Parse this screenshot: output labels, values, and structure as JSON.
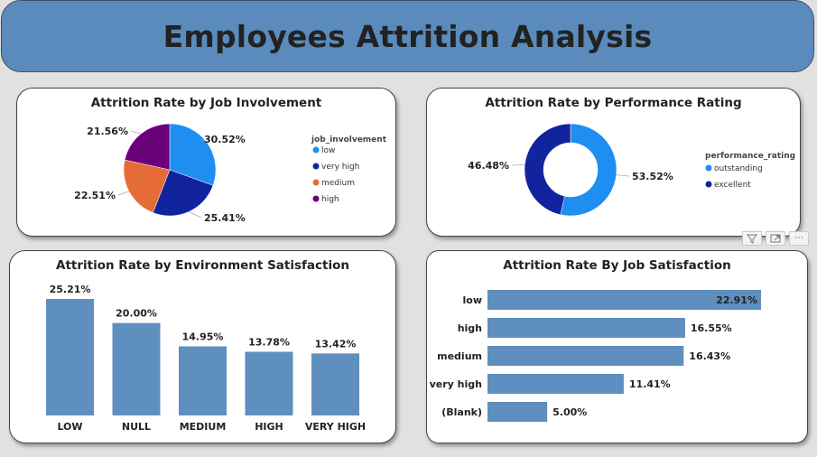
{
  "header": {
    "title": "Employees Attrition Analysis"
  },
  "visual_toolbar": {
    "icons": [
      "filter-icon",
      "focus-mode-icon",
      "more-options-icon"
    ],
    "more_glyph": "⋯"
  },
  "chart_data": [
    {
      "type": "pie",
      "title": "Attrition Rate by Job Involvement",
      "legend_title": "job_involvement",
      "legend_position": "right",
      "slices": [
        {
          "label": "low",
          "value": 30.52,
          "display": "30.52%",
          "color": "#1f8ef1"
        },
        {
          "label": "very high",
          "value": 25.41,
          "display": "25.41%",
          "color": "#12239e"
        },
        {
          "label": "medium",
          "value": 22.51,
          "display": "22.51%",
          "color": "#e66c37"
        },
        {
          "label": "high",
          "value": 21.56,
          "display": "21.56%",
          "color": "#6b007b"
        }
      ]
    },
    {
      "type": "pie",
      "donut": true,
      "title": "Attrition Rate by Performance Rating",
      "legend_title": "performance_rating",
      "legend_position": "right",
      "slices": [
        {
          "label": "outstanding",
          "value": 53.52,
          "display": "53.52%",
          "color": "#1f8ef1"
        },
        {
          "label": "excellent",
          "value": 46.48,
          "display": "46.48%",
          "color": "#12239e"
        }
      ]
    },
    {
      "type": "bar",
      "orientation": "vertical",
      "title": "Attrition Rate by Environment Satisfaction",
      "categories": [
        "LOW",
        "NULL",
        "MEDIUM",
        "HIGH",
        "VERY HIGH"
      ],
      "values": [
        25.21,
        20.0,
        14.95,
        13.78,
        13.42
      ],
      "labels": [
        "25.21%",
        "20.00%",
        "14.95%",
        "13.78%",
        "13.42%"
      ],
      "color": "#5f8fbf",
      "ylim": [
        0,
        25.21
      ]
    },
    {
      "type": "bar",
      "orientation": "horizontal",
      "title": "Attrition Rate By Job Satisfaction",
      "categories": [
        "low",
        "high",
        "medium",
        "very high",
        "(Blank)"
      ],
      "values": [
        22.91,
        16.55,
        16.43,
        11.41,
        5.0
      ],
      "labels": [
        "22.91%",
        "16.55%",
        "16.43%",
        "11.41%",
        "5.00%"
      ],
      "color": "#5f8fbf",
      "xlim": [
        0,
        22.91
      ]
    }
  ]
}
